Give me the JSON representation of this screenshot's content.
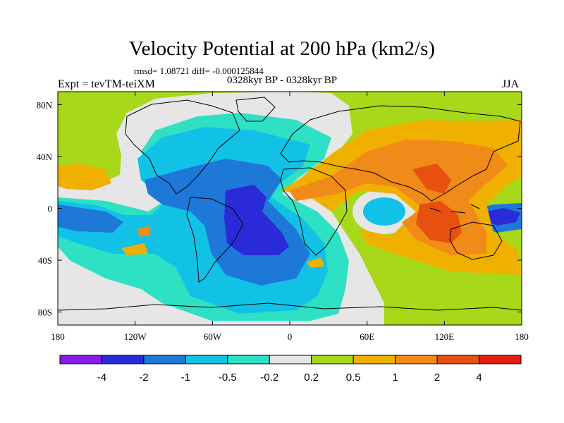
{
  "title": "Velocity Potential at 200 hPa (km2/s)",
  "stats": "rmsd= 1.08721 diff= -0.000125844",
  "left_label": "Expt = tevTM-teiXM",
  "center_label": "0328kyr BP - 0328kyr BP",
  "right_label": "JJA",
  "chart_data": {
    "type": "heatmap",
    "projection": "cylindrical equidistant",
    "xlim": [
      -180,
      180
    ],
    "ylim": [
      -90,
      90
    ],
    "x_ticks": [
      "180",
      "120W",
      "60W",
      "0",
      "60E",
      "120E",
      "180"
    ],
    "y_ticks": [
      "80N",
      "40N",
      "0",
      "40S",
      "80S"
    ],
    "levels": [
      "-4",
      "-2",
      "-1",
      "-0.5",
      "-0.2",
      "0.2",
      "0.5",
      "1",
      "2",
      "4"
    ],
    "colors": [
      "#8a1ce6",
      "#2a2ad8",
      "#1e78d8",
      "#12c2e6",
      "#2ee0c4",
      "#e6e6e6",
      "#a8d81a",
      "#f0b000",
      "#f08a18",
      "#e85010",
      "#e61c10"
    ]
  }
}
